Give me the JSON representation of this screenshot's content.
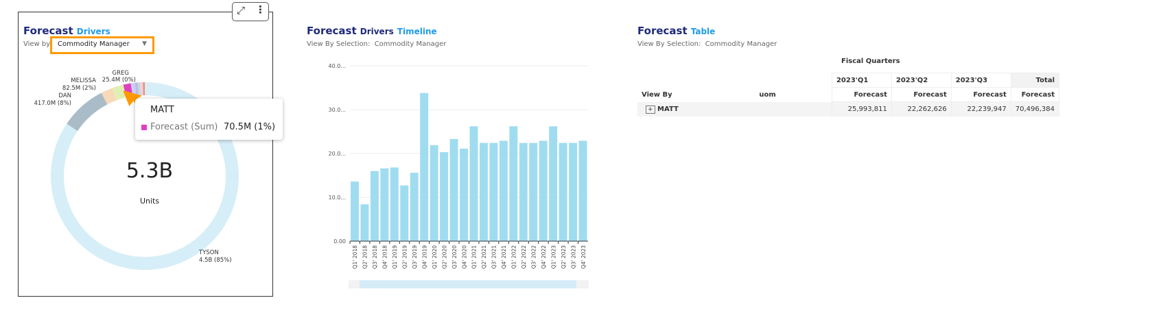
{
  "drivers": {
    "title_a": "Forecast",
    "title_b": "Drivers",
    "view_by_label": "View by",
    "view_by_value": "Commodity Manager",
    "center_value": "5.3B",
    "center_unit": "Units",
    "slices": [
      {
        "name": "TYSON",
        "label": "4.5B (85%)",
        "pct": 85,
        "color": "#d6eef7"
      },
      {
        "name": "DAN",
        "label": "417.0M (8%)",
        "pct": 8,
        "color": "#a9bcc7"
      },
      {
        "name": "",
        "pct": 2,
        "color": "#f8d9b8"
      },
      {
        "name": "MELISSA",
        "label": "82.5M (2%)",
        "pct": 2,
        "color": "#e2efb3"
      },
      {
        "name": "MATT",
        "pct": 1.3,
        "color": "#e040c0"
      },
      {
        "name": "",
        "pct": 0.7,
        "color": "#c3d3f1"
      },
      {
        "name": "",
        "pct": 0.5,
        "color": "#c7b4ef"
      },
      {
        "name": "",
        "pct": 0.4,
        "color": "#b6e3c7"
      },
      {
        "name": "GREG",
        "label": "25.4M (0%)",
        "pct": 0.5,
        "color": "#f7cbe3"
      },
      {
        "name": "",
        "pct": 0.3,
        "color": "#f08a78"
      }
    ],
    "tooltip": {
      "name": "MATT",
      "series": "Forecast (Sum)",
      "value": "70.5M (1%)",
      "color": "#e040c0"
    }
  },
  "timeline": {
    "title_a": "Forecast",
    "title_b": "Drivers",
    "title_c": "Timeline",
    "selection_label": "View By Selection:",
    "selection_value": "Commodity Manager"
  },
  "chart_data": {
    "type": "bar",
    "color": "#a0dcf0",
    "ylim": [
      0,
      40
    ],
    "yticks": [
      "0.00",
      "10.0...",
      "20.0...",
      "30.0...",
      "40.0..."
    ],
    "categories": [
      "Q1' 2018",
      "Q2' 2018",
      "Q3' 2018",
      "Q4' 2018",
      "Q1' 2019",
      "Q2' 2019",
      "Q3' 2019",
      "Q4' 2019",
      "Q1' 2020",
      "Q2' 2020",
      "Q3' 2020",
      "Q4' 2020",
      "Q1' 2021",
      "Q2' 2021",
      "Q3' 2021",
      "Q4' 2021",
      "Q1' 2022",
      "Q2' 2022",
      "Q3' 2022",
      "Q4' 2022",
      "Q1' 2023",
      "Q2' 2023",
      "Q3' 2023",
      "Q4' 2023"
    ],
    "values": [
      13.6,
      8.4,
      16.0,
      16.6,
      16.8,
      12.7,
      15.6,
      33.8,
      21.9,
      20.3,
      23.3,
      21.1,
      26.2,
      22.4,
      22.4,
      22.9,
      26.2,
      22.4,
      22.4,
      22.9,
      26.2,
      22.4,
      22.4,
      22.9
    ]
  },
  "table": {
    "title_a": "Forecast",
    "title_b": "Table",
    "selection_label": "View By Selection:",
    "selection_value": "Commodity Manager",
    "group_header": "Fiscal Quarters",
    "quarters": [
      "2023'Q1",
      "2023'Q2",
      "2023'Q3",
      "Total"
    ],
    "col_view_by": "View By",
    "col_uom": "uom",
    "measure": "Forecast",
    "rows": [
      {
        "name": "MATT",
        "values": [
          "25,993,811",
          "22,262,626",
          "22,239,947",
          "70,496,384"
        ]
      }
    ]
  }
}
